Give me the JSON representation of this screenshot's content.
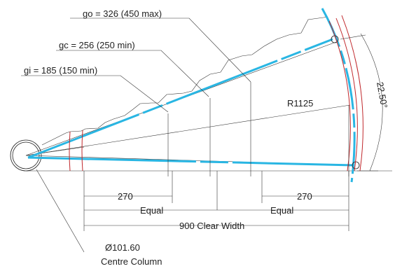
{
  "labels": {
    "go": "go = 326 (450 max)",
    "gc": "gc = 256 (250 min)",
    "gi": "gi = 185 (150 min)",
    "radius": "R1125",
    "angle": "22.50°",
    "dim_left": "270",
    "dim_right": "270",
    "equal_left": "Equal",
    "equal_right": "Equal",
    "clear_width": "900 Clear Width",
    "column_dia": "Ø101.60",
    "column_name": "Centre Column"
  },
  "colors": {
    "walkline": "#29b6e3",
    "edge": "#c0282c",
    "linework": "#222222"
  }
}
